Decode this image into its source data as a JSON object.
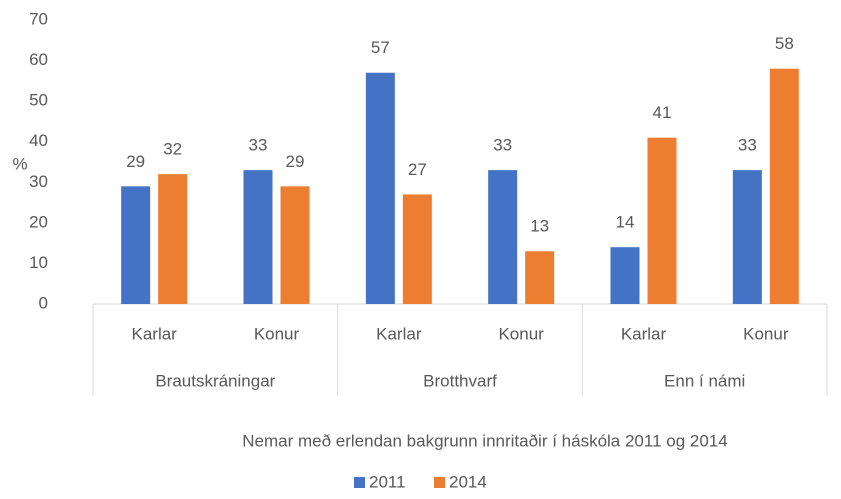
{
  "chart_data": {
    "type": "bar",
    "y_label": "%",
    "x_label": "Nemar með erlendan bakgrunn innritaðir í háskóla 2011 og 2014",
    "categories": [
      "Karlar",
      "Konur",
      "Karlar",
      "Konur",
      "Karlar",
      "Konur"
    ],
    "groups": [
      "Brautskráningar",
      "Brotthvarf",
      "Enn í námi"
    ],
    "series": [
      {
        "name": "2011",
        "color": "#4472c4",
        "values": [
          29,
          33,
          57,
          33,
          14,
          33
        ]
      },
      {
        "name": "2014",
        "color": "#ed7d31",
        "values": [
          32,
          29,
          27,
          13,
          41,
          58
        ]
      }
    ],
    "ylim": [
      0,
      70
    ],
    "yticks": [
      0,
      10,
      20,
      30,
      40,
      50,
      60,
      70
    ],
    "grid": false,
    "legend": "bottom",
    "data_labels": true
  }
}
